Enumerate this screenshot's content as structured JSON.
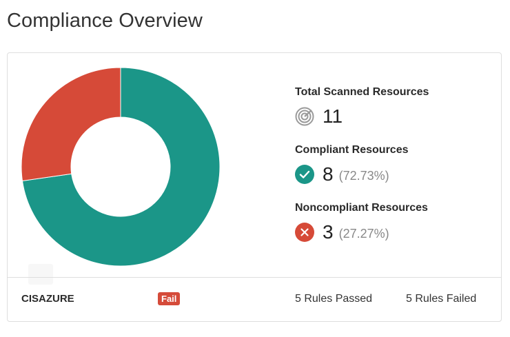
{
  "page": {
    "title": "Compliance Overview"
  },
  "colors": {
    "compliant": "#1b9688",
    "noncompliant": "#d64a38",
    "neutral": "#9a9a9a"
  },
  "chart_data": {
    "type": "pie",
    "donut": true,
    "title": "",
    "slices": [
      {
        "name": "Compliant",
        "value": 8,
        "color": "#1b9688"
      },
      {
        "name": "Noncompliant",
        "value": 3,
        "color": "#d64a38"
      }
    ]
  },
  "stats": {
    "total": {
      "label": "Total Scanned Resources",
      "value": "11",
      "icon": "radar-icon"
    },
    "compliant": {
      "label": "Compliant Resources",
      "value": "8",
      "pct": "(72.73%)",
      "icon": "check-circle-icon"
    },
    "noncompliant": {
      "label": "Noncompliant Resources",
      "value": "3",
      "pct": "(27.27%)",
      "icon": "x-circle-icon"
    }
  },
  "footer": {
    "standard": "CISAZURE",
    "status": "Fail",
    "rules_passed": "5 Rules Passed",
    "rules_failed": "5 Rules Failed"
  }
}
